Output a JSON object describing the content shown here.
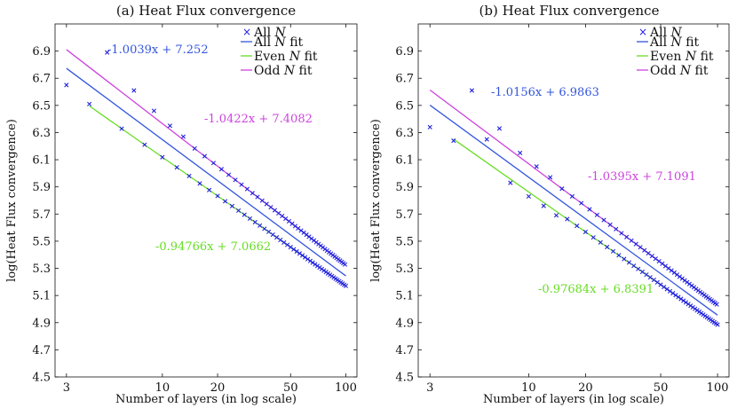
{
  "chart_data": [
    {
      "type": "scatter",
      "title": "(a) Heat Flux convergence",
      "xlabel": "Number of layers (in log scale)",
      "ylabel": "log(Heat Flux convergence)",
      "xscale": "log",
      "xlim": [
        2.6,
        115
      ],
      "ylim": [
        4.5,
        7.1
      ],
      "xticks": [
        3,
        10,
        20,
        50,
        100
      ],
      "xtick_labels": [
        "3",
        "10",
        "20",
        "50",
        "100"
      ],
      "yticks": [
        4.5,
        4.7,
        4.9,
        5.1,
        5.3,
        5.5,
        5.7,
        5.9,
        6.1,
        6.3,
        6.5,
        6.7,
        6.9
      ],
      "ytick_labels": [
        "4.5",
        "4.7",
        "4.9",
        "5.1",
        "5.3",
        "5.5",
        "5.7",
        "5.9",
        "6.1",
        "6.3",
        "6.5",
        "6.7",
        "6.9"
      ],
      "legend_position": "top-right",
      "legend": [
        "All N",
        "All N fit",
        "Even N fit",
        "Odd N fit"
      ],
      "points": {
        "name": "All N",
        "color": "#2222dd",
        "x_range": [
          3,
          100
        ],
        "even_offset": 0.0,
        "odd_offset": 0.0,
        "first_points": [
          [
            3,
            6.65
          ],
          [
            4,
            6.51
          ],
          [
            5,
            6.89
          ],
          [
            7,
            6.61
          ],
          [
            9,
            6.46
          ],
          [
            11,
            6.35
          ],
          [
            13,
            6.27
          ]
        ]
      },
      "series": [
        {
          "name": "All N fit",
          "color": "#3355dd",
          "slope": -1.0039,
          "intercept": 7.252,
          "x_range": [
            3,
            100
          ]
        },
        {
          "name": "Even N fit",
          "color": "#66dd22",
          "slope": -0.94766,
          "intercept": 7.0662,
          "x_range": [
            4,
            100
          ]
        },
        {
          "name": "Odd N fit",
          "color": "#cc44dd",
          "slope": -1.0422,
          "intercept": 7.4082,
          "x_range": [
            3,
            99
          ]
        }
      ],
      "annotations": [
        {
          "text": "-1.0039x + 7.252",
          "color": "#3355dd"
        },
        {
          "text": "-1.0422x + 7.4082",
          "color": "#cc44dd"
        },
        {
          "text": "-0.94766x + 7.0662",
          "color": "#66dd22"
        }
      ]
    },
    {
      "type": "scatter",
      "title": "(b) Heat Flux convergence",
      "xlabel": "Number of layers (in log scale)",
      "ylabel": "log(Heat Flux convergence)",
      "xscale": "log",
      "xlim": [
        2.6,
        115
      ],
      "ylim": [
        4.5,
        7.1
      ],
      "xticks": [
        3,
        10,
        20,
        50,
        100
      ],
      "xtick_labels": [
        "3",
        "10",
        "20",
        "50",
        "100"
      ],
      "yticks": [
        4.5,
        4.7,
        4.9,
        5.1,
        5.3,
        5.5,
        5.7,
        5.9,
        6.1,
        6.3,
        6.5,
        6.7,
        6.9
      ],
      "ytick_labels": [
        "4.5",
        "4.7",
        "4.9",
        "5.1",
        "5.3",
        "5.5",
        "5.7",
        "5.9",
        "6.1",
        "6.3",
        "6.5",
        "6.7",
        "6.9"
      ],
      "legend_position": "top-right",
      "legend": [
        "All N",
        "All N fit",
        "Even N fit",
        "Odd N fit"
      ],
      "points": {
        "name": "All N",
        "color": "#2222dd",
        "x_range": [
          3,
          100
        ],
        "first_points": [
          [
            3,
            6.34
          ],
          [
            4,
            6.24
          ],
          [
            5,
            6.61
          ],
          [
            6,
            6.25
          ],
          [
            7,
            6.33
          ],
          [
            8,
            5.93
          ],
          [
            9,
            6.15
          ],
          [
            10,
            5.83
          ],
          [
            11,
            6.05
          ],
          [
            12,
            5.76
          ],
          [
            13,
            5.97
          ],
          [
            14,
            5.69
          ]
        ]
      },
      "series": [
        {
          "name": "All N fit",
          "color": "#3355dd",
          "slope": -1.0156,
          "intercept": 6.9863,
          "x_range": [
            3,
            100
          ]
        },
        {
          "name": "Even N fit",
          "color": "#66dd22",
          "slope": -0.97684,
          "intercept": 6.8391,
          "x_range": [
            4,
            100
          ]
        },
        {
          "name": "Odd N fit",
          "color": "#cc44dd",
          "slope": -1.0395,
          "intercept": 7.1091,
          "x_range": [
            3,
            99
          ]
        }
      ],
      "annotations": [
        {
          "text": "-1.0156x + 6.9863",
          "color": "#3355dd"
        },
        {
          "text": "-1.0395x + 7.1091",
          "color": "#cc44dd"
        },
        {
          "text": "-0.97684x + 6.8391",
          "color": "#66dd22"
        }
      ]
    }
  ]
}
